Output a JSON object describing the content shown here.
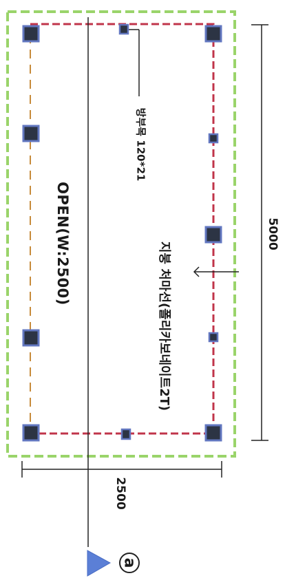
{
  "labels": {
    "opening": "OPEN(W:2500)",
    "roof": "지붕 처마선(폴리카보네이트2T)",
    "post": "방부목 120*21",
    "length_dim": "5000",
    "width_dim": "2500",
    "section_marker": "a"
  },
  "colors": {
    "outline_green": "#9ad46a",
    "eave_red": "#c0344a",
    "post_fill": "#2c3444",
    "post_border": "#6277c0",
    "marker_blue": "#5b7fd6",
    "line": "#222222"
  }
}
